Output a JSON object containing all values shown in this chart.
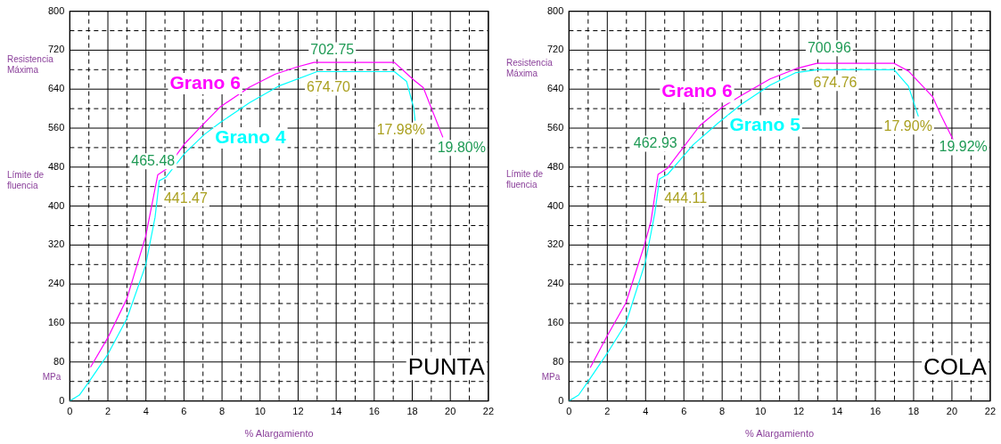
{
  "chart_data": [
    {
      "type": "line",
      "title": "PUNTA",
      "xlabel": "% Alargamiento",
      "ylabel": "MPa",
      "marker": "none",
      "grid": true,
      "xlim": [
        0,
        22
      ],
      "ylim": [
        0,
        800
      ],
      "xticks": [
        0,
        {
          "value": 1,
          "label": null
        },
        2,
        {
          "value": 3,
          "label": null
        },
        4,
        {
          "value": 5,
          "label": null
        },
        6,
        {
          "value": 7,
          "label": null
        },
        8,
        {
          "value": 9,
          "label": null
        },
        10,
        {
          "value": 11,
          "label": null
        },
        12,
        {
          "value": 13,
          "label": null
        },
        14,
        {
          "value": 15,
          "label": null
        },
        16,
        {
          "value": 17,
          "label": null
        },
        18,
        {
          "value": 19,
          "label": null
        },
        20,
        {
          "value": 21,
          "label": null
        },
        22
      ],
      "yticks": [
        0,
        {
          "value": 40,
          "label": null
        },
        80,
        {
          "value": 120,
          "label": null
        },
        160,
        {
          "value": 200,
          "label": null
        },
        240,
        {
          "value": 280,
          "label": null
        },
        320,
        {
          "value": 360,
          "label": null
        },
        400,
        {
          "value": 440,
          "label": null
        },
        480,
        {
          "value": 520,
          "label": null
        },
        560,
        {
          "value": 600,
          "label": null
        },
        640,
        {
          "value": 680,
          "label": null
        },
        720,
        {
          "value": 760,
          "label": null
        },
        800
      ],
      "series": [
        {
          "name": "Grano 6",
          "color": "#ff00ff",
          "x": [
            1.1,
            2,
            3,
            3.98,
            4.3,
            4.62,
            5.04,
            6.06,
            6.99,
            7.92,
            9.44,
            10.8,
            11.98,
            12.83,
            17.06,
            18.07,
            18.58,
            19.6
          ],
          "values": [
            70,
            130,
            210,
            337,
            400,
            464,
            475,
            529,
            567,
            604,
            644,
            671,
            686,
            695,
            695,
            659,
            643,
            542
          ]
        },
        {
          "name": "Grano 4",
          "color": "#00ffff",
          "x": [
            0,
            0.5,
            0.98,
            2,
            3,
            3.98,
            4.48,
            4.7,
            5.04,
            6.06,
            7.07,
            7.92,
            9.44,
            10.96,
            13,
            17.06,
            17.7,
            18.07,
            18.15
          ],
          "values": [
            0,
            12,
            38,
            96,
            169,
            278,
            377,
            452,
            459,
            509,
            547,
            572,
            612,
            646,
            676,
            676,
            656,
            602,
            576
          ]
        }
      ],
      "annotations": [
        "702.75",
        "674.70",
        "465.48",
        "441.47",
        "19.80%",
        "17.98%",
        "Resistencia Máxima",
        "Límite de fluencia"
      ]
    },
    {
      "type": "line",
      "title": "COLA",
      "xlabel": "% Alargamiento",
      "ylabel": "MPa",
      "marker": "none",
      "grid": true,
      "xlim": [
        0,
        22
      ],
      "ylim": [
        0,
        800
      ],
      "xticks": [
        0,
        {
          "value": 1,
          "label": null
        },
        2,
        {
          "value": 3,
          "label": null
        },
        4,
        {
          "value": 5,
          "label": null
        },
        6,
        {
          "value": 7,
          "label": null
        },
        8,
        {
          "value": 9,
          "label": null
        },
        10,
        {
          "value": 11,
          "label": null
        },
        12,
        {
          "value": 13,
          "label": null
        },
        14,
        {
          "value": 15,
          "label": null
        },
        16,
        {
          "value": 17,
          "label": null
        },
        18,
        {
          "value": 19,
          "label": null
        },
        20,
        {
          "value": 21,
          "label": null
        },
        22
      ],
      "yticks": [
        0,
        {
          "value": 40,
          "label": null
        },
        80,
        {
          "value": 120,
          "label": null
        },
        160,
        {
          "value": 200,
          "label": null
        },
        240,
        {
          "value": 280,
          "label": null
        },
        320,
        {
          "value": 360,
          "label": null
        },
        400,
        {
          "value": 440,
          "label": null
        },
        480,
        {
          "value": 520,
          "label": null
        },
        560,
        {
          "value": 600,
          "label": null
        },
        640,
        {
          "value": 680,
          "label": null
        },
        720,
        {
          "value": 760,
          "label": null
        },
        800
      ],
      "series": [
        {
          "name": "Grano 6",
          "color": "#ff00ff",
          "x": [
            1.12,
            2,
            2.97,
            3.93,
            4.28,
            4.65,
            5.15,
            6.83,
            8,
            9,
            10.5,
            11.86,
            12.95,
            16.98,
            17.73,
            19,
            19.41,
            20.08
          ],
          "values": [
            69,
            134,
            201,
            319,
            369,
            465,
            478,
            565,
            603,
            627,
            661,
            682,
            693,
            693,
            677,
            624,
            588,
            535
          ]
        },
        {
          "name": "Grano 5",
          "color": "#00ffff",
          "x": [
            0,
            0.5,
            1,
            2,
            2.97,
            3.99,
            4.48,
            4.73,
            5.15,
            6.49,
            7.83,
            9,
            10.5,
            11.86,
            12.95,
            16.98,
            17.73,
            18.24
          ],
          "values": [
            0,
            12,
            40,
            98,
            159,
            285,
            385,
            456,
            465,
            526,
            572,
            609,
            648,
            674,
            680,
            680,
            646,
            585
          ]
        }
      ],
      "annotations": [
        "700.96",
        "674.76",
        "462.93",
        "444.11",
        "19.92%",
        "17.90%",
        "Resistencia Máxima",
        "Límite de fluencia"
      ]
    }
  ]
}
